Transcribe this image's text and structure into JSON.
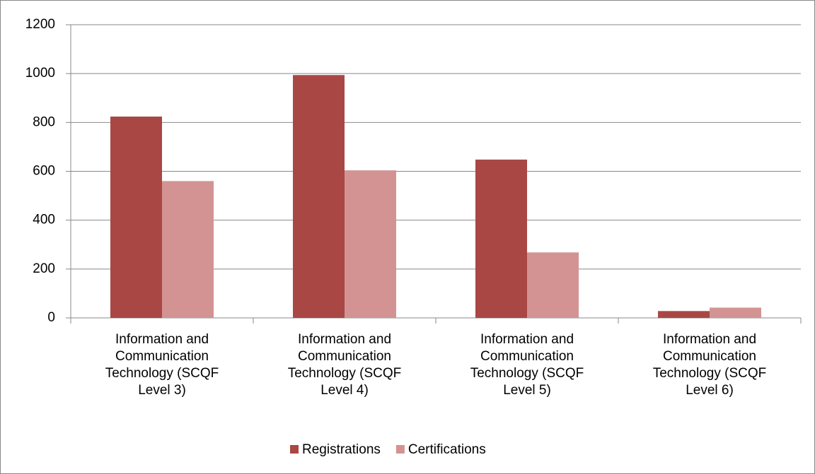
{
  "chart_data": {
    "type": "bar",
    "categories": [
      "Information and Communication Technology (SCQF Level 3)",
      "Information and Communication Technology (SCQF Level 4)",
      "Information and Communication Technology (SCQF Level 5)",
      "Information and Communication Technology (SCQF Level 6)"
    ],
    "series": [
      {
        "name": "Registrations",
        "color": "#a94744",
        "values": [
          824,
          994,
          648,
          28
        ]
      },
      {
        "name": "Certifications",
        "color": "#d39393",
        "values": [
          560,
          604,
          268,
          42
        ]
      }
    ],
    "ylim": [
      0,
      1200
    ],
    "yticks": [
      0,
      200,
      400,
      600,
      800,
      1000,
      1200
    ],
    "grid": true,
    "legend": "bottom"
  }
}
